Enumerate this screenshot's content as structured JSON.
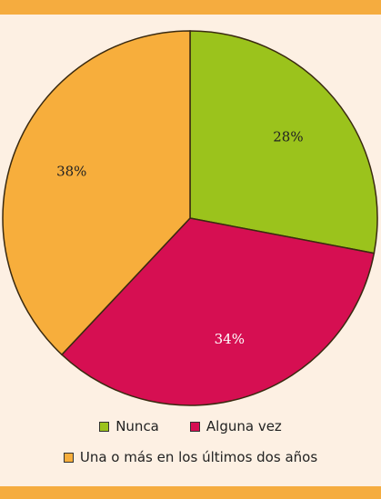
{
  "chart_data": {
    "type": "pie",
    "title": "",
    "slices": [
      {
        "label": "Nunca",
        "value": 28,
        "value_label": "28%",
        "color": "#9bc31c"
      },
      {
        "label": "Alguna vez",
        "value": 34,
        "value_label": "34%",
        "color": "#d60f52"
      },
      {
        "label": "Una o más en los últimos dos años",
        "value": 38,
        "value_label": "38%",
        "color": "#f7ae3c"
      }
    ],
    "legend_placement": "bottom"
  },
  "colors": {
    "band": "#f5ac3f",
    "background": "#fdf0e3",
    "outline": "#3a2a10"
  }
}
